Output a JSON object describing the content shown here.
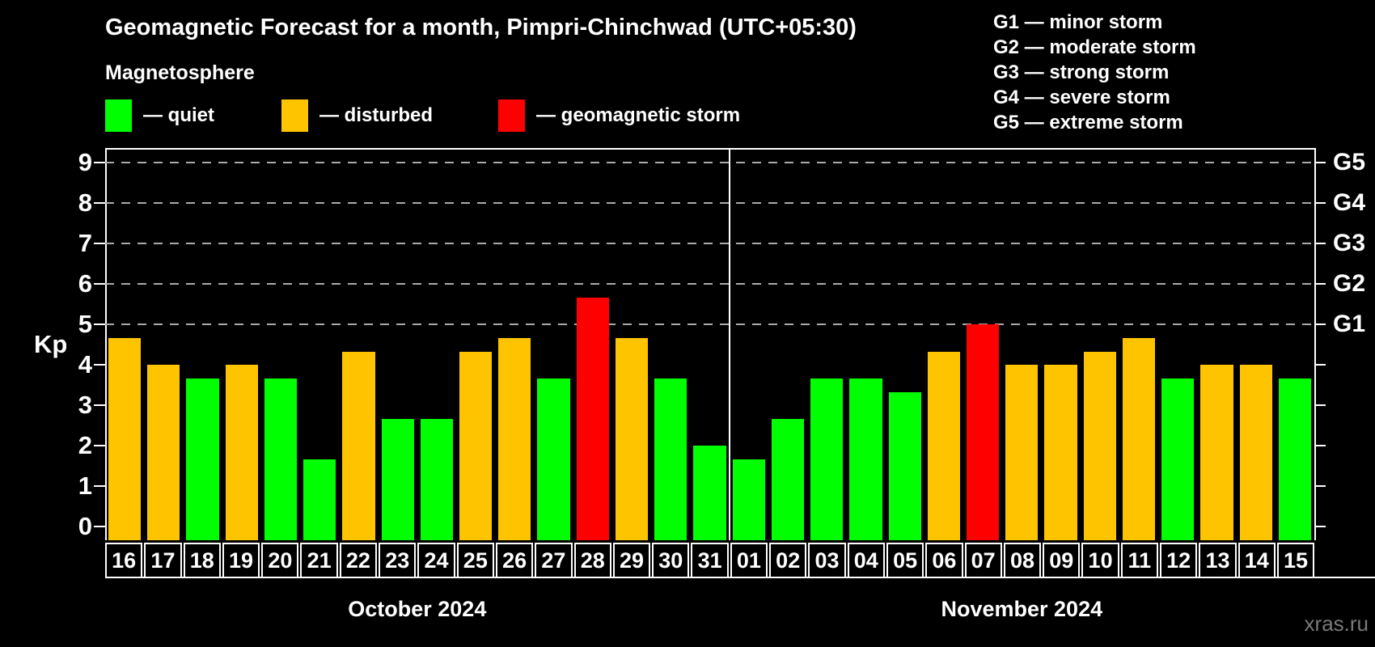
{
  "title": "Geomagnetic Forecast for a month, Pimpri-Chinchwad (UTC+05:30)",
  "subtitle": "Magnetosphere",
  "watermark": "xras.ru",
  "legend": {
    "quiet": "— quiet",
    "disturbed": "— disturbed",
    "storm": "— geomagnetic storm"
  },
  "g_scale_legend": [
    "G1 — minor storm",
    "G2 — moderate storm",
    "G3 — strong storm",
    "G4 — severe storm",
    "G5 — extreme storm"
  ],
  "colors": {
    "quiet": "#00ff00",
    "disturbed": "#ffc400",
    "storm": "#ff0000",
    "background": "#000000",
    "grid": "#aaaaaa",
    "axis": "#ffffff",
    "watermark": "#7a7a7a"
  },
  "y_axis": {
    "label": "Kp",
    "ticks": [
      "0",
      "1",
      "2",
      "3",
      "4",
      "5",
      "6",
      "7",
      "8",
      "9"
    ]
  },
  "right_axis": {
    "labels": [
      {
        "kp": 5,
        "text": "G1"
      },
      {
        "kp": 6,
        "text": "G2"
      },
      {
        "kp": 7,
        "text": "G3"
      },
      {
        "kp": 8,
        "text": "G4"
      },
      {
        "kp": 9,
        "text": "G5"
      }
    ]
  },
  "chart_data": {
    "type": "bar",
    "title": "Geomagnetic Forecast for a month, Pimpri-Chinchwad (UTC+05:30)",
    "xlabel": "",
    "ylabel": "Kp",
    "ylim": [
      0,
      9
    ],
    "grid": "dashed horizontal at Kp 5-9",
    "gridlines_kp": [
      5,
      6,
      7,
      8,
      9
    ],
    "months": [
      {
        "label": "October 2024",
        "days": [
          "16",
          "17",
          "18",
          "19",
          "20",
          "21",
          "22",
          "23",
          "24",
          "25",
          "26",
          "27",
          "28",
          "29",
          "30",
          "31"
        ],
        "values": [
          4.67,
          4.0,
          3.67,
          4.0,
          3.67,
          1.67,
          4.33,
          2.67,
          2.67,
          4.33,
          4.67,
          3.67,
          5.67,
          4.67,
          3.67,
          2.0
        ],
        "statuses": [
          "disturbed",
          "disturbed",
          "quiet",
          "disturbed",
          "quiet",
          "quiet",
          "disturbed",
          "quiet",
          "quiet",
          "disturbed",
          "disturbed",
          "quiet",
          "storm",
          "disturbed",
          "quiet",
          "quiet"
        ]
      },
      {
        "label": "November 2024",
        "days": [
          "01",
          "02",
          "03",
          "04",
          "05",
          "06",
          "07",
          "08",
          "09",
          "10",
          "11",
          "12",
          "13",
          "14",
          "15"
        ],
        "values": [
          1.67,
          2.67,
          3.67,
          3.67,
          3.33,
          4.33,
          5.0,
          4.0,
          4.0,
          4.33,
          4.67,
          3.67,
          4.0,
          4.0,
          3.67
        ],
        "statuses": [
          "quiet",
          "quiet",
          "quiet",
          "quiet",
          "quiet",
          "disturbed",
          "storm",
          "disturbed",
          "disturbed",
          "disturbed",
          "disturbed",
          "quiet",
          "disturbed",
          "disturbed",
          "quiet"
        ]
      }
    ]
  }
}
